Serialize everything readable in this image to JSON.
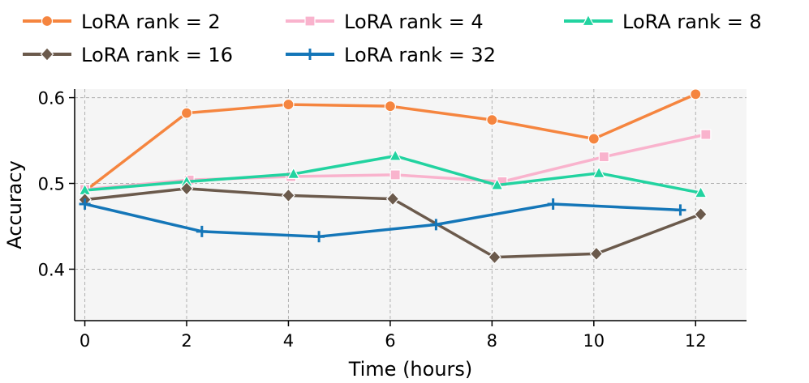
{
  "chart_data": {
    "type": "line",
    "title": "",
    "xlabel": "Time (hours)",
    "ylabel": "Accuracy",
    "xlim": [
      -0.2,
      13
    ],
    "ylim": [
      0.34,
      0.61
    ],
    "xticks": [
      0,
      2,
      4,
      6,
      8,
      10,
      12
    ],
    "xtick_labels": [
      "0",
      "2",
      "4",
      "6",
      "8",
      "10",
      "12"
    ],
    "yticks": [
      0.4,
      0.5,
      0.6
    ],
    "ytick_labels": [
      "0.4",
      "0.5",
      "0.6"
    ],
    "grid": true,
    "legend_position": "top",
    "series": [
      {
        "name": "LoRA rank = 2",
        "color": "#f5853f",
        "marker": "circle",
        "x": [
          0,
          2,
          4,
          6,
          8,
          10,
          12
        ],
        "y": [
          0.491,
          0.582,
          0.592,
          0.59,
          0.574,
          0.552,
          0.604
        ]
      },
      {
        "name": "LoRA rank = 4",
        "color": "#f9b3cd",
        "marker": "square",
        "x": [
          0,
          2.05,
          4.05,
          6.1,
          8.2,
          10.2,
          12.2
        ],
        "y": [
          0.493,
          0.504,
          0.508,
          0.51,
          0.502,
          0.531,
          0.557
        ]
      },
      {
        "name": "LoRA rank = 8",
        "color": "#22d3a0",
        "marker": "triangle",
        "x": [
          0,
          2,
          4.1,
          6.1,
          8.1,
          10.1,
          12.1
        ],
        "y": [
          0.492,
          0.502,
          0.511,
          0.532,
          0.498,
          0.512,
          0.489
        ]
      },
      {
        "name": "LoRA rank = 16",
        "color": "#6b5a4c",
        "marker": "diamond",
        "x": [
          0,
          2,
          4,
          6.05,
          8.05,
          10.05,
          12.1
        ],
        "y": [
          0.481,
          0.494,
          0.486,
          0.482,
          0.414,
          0.418,
          0.464
        ]
      },
      {
        "name": "LoRA rank = 32",
        "color": "#1476b8",
        "marker": "plus",
        "x": [
          0,
          2.3,
          4.6,
          6.9,
          9.2,
          11.7
        ],
        "y": [
          0.476,
          0.444,
          0.438,
          0.452,
          0.476,
          0.469
        ]
      }
    ]
  }
}
